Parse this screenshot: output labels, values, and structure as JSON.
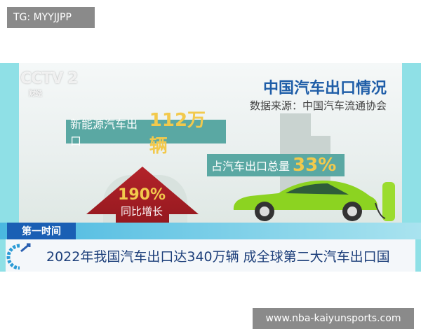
{
  "watermarks": {
    "top_left": "TG: MYYJJPP",
    "bottom_right": "www.nba-kaiyunsports.com"
  },
  "broadcast": {
    "channel_logo": "CCTV 2 财经",
    "infographic": {
      "title": "中国汽车出口情况",
      "source": "数据来源：中国汽车流通协会",
      "stat1_label": "新能源汽车出口",
      "stat1_value": "112万辆",
      "stat2_label": "占汽车出口总量",
      "stat2_value": "33%",
      "growth_value": "190%",
      "growth_label": "同比增长"
    },
    "program_tag": "第一时间",
    "headline": "2022年我国汽车出口达340万辆 成全球第二大汽车出口国"
  },
  "colors": {
    "frame": "#8fe0e6",
    "tag": "#1a5fb4",
    "stat_box": "#5aa8a3",
    "highlight": "#f2c94c",
    "arrow": "#9e1c22",
    "car": "#8cd321"
  }
}
